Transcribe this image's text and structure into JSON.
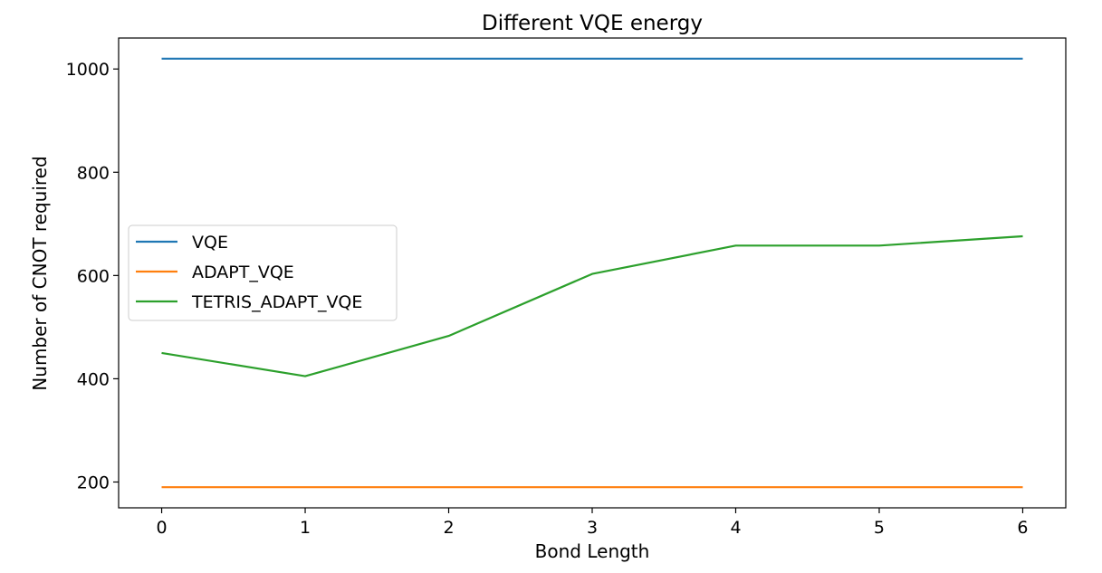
{
  "chart_data": {
    "type": "line",
    "title": "Different VQE energy",
    "xlabel": "Bond Length",
    "ylabel": "Number of CNOT required",
    "x": [
      0,
      1,
      2,
      3,
      4,
      5,
      6
    ],
    "xticks": [
      "0",
      "1",
      "2",
      "3",
      "4",
      "5",
      "6"
    ],
    "yticks": [
      "200",
      "400",
      "600",
      "800",
      "1000"
    ],
    "xlim": [
      -0.3,
      6.3
    ],
    "ylim": [
      150,
      1060
    ],
    "grid": false,
    "legend_position": "center-left",
    "series": [
      {
        "name": "VQE",
        "color": "#1f77b4",
        "values": [
          1020,
          1020,
          1020,
          1020,
          1020,
          1020,
          1020
        ]
      },
      {
        "name": "ADAPT_VQE",
        "color": "#ff7f0e",
        "values": [
          190,
          190,
          190,
          190,
          190,
          190,
          190
        ]
      },
      {
        "name": "TETRIS_ADAPT_VQE",
        "color": "#2ca02c",
        "values": [
          450,
          405,
          483,
          603,
          658,
          658,
          676
        ]
      }
    ]
  }
}
